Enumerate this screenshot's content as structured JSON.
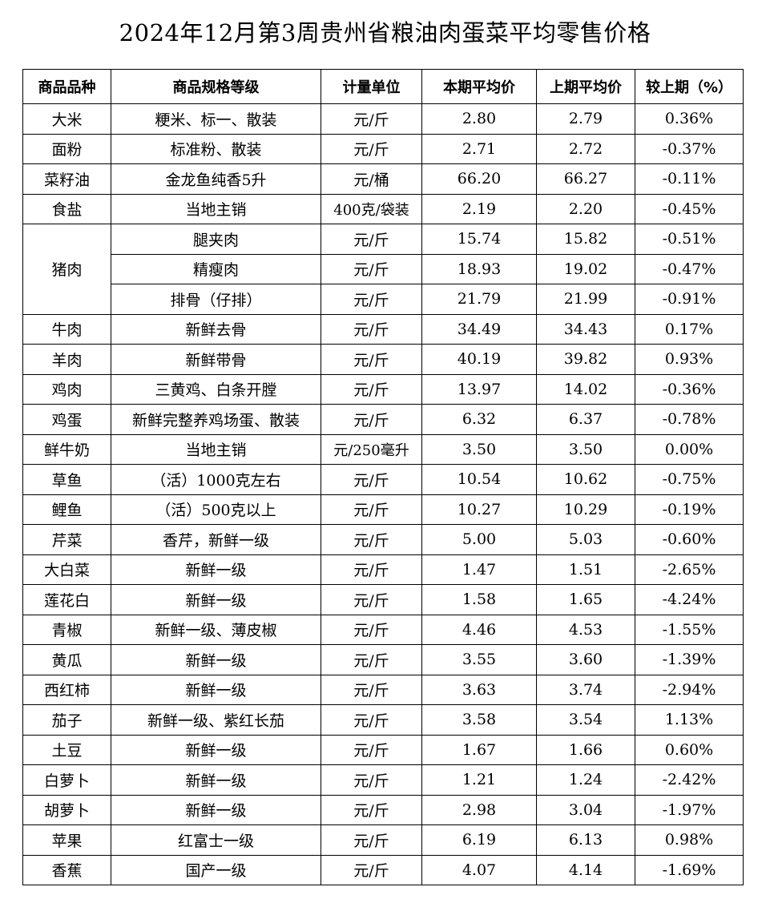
{
  "title": "2024年12月第3周贵州省粮油肉蛋菜平均零售价格",
  "headers": [
    "商品品种",
    "商品规格等级",
    "计量单位",
    "本期平均价",
    "上期平均价",
    "较上期（%）"
  ],
  "rows": [
    {
      "item": "大米",
      "spec": "粳米、标一、散装",
      "unit": "元/斤",
      "cur": "2.80",
      "prev": "2.79",
      "chg": "0.36%"
    },
    {
      "item": "面粉",
      "spec": "标准粉、散装",
      "unit": "元/斤",
      "cur": "2.71",
      "prev": "2.72",
      "chg": "-0.37%"
    },
    {
      "item": "菜籽油",
      "spec": "金龙鱼纯香5升",
      "unit": "元/桶",
      "cur": "66.20",
      "prev": "66.27",
      "chg": "-0.11%"
    },
    {
      "item": "食盐",
      "spec": "当地主销",
      "unit": "400克/袋装",
      "cur": "2.19",
      "prev": "2.20",
      "chg": "-0.45%"
    },
    {
      "item": "猪肉",
      "spec": "腿夹肉",
      "unit": "元/斤",
      "cur": "15.74",
      "prev": "15.82",
      "chg": "-0.51%"
    },
    {
      "item": "",
      "spec": "精瘦肉",
      "unit": "元/斤",
      "cur": "18.93",
      "prev": "19.02",
      "chg": "-0.47%"
    },
    {
      "item": "",
      "spec": "排骨（仔排）",
      "unit": "元/斤",
      "cur": "21.79",
      "prev": "21.99",
      "chg": "-0.91%"
    },
    {
      "item": "牛肉",
      "spec": "新鲜去骨",
      "unit": "元/斤",
      "cur": "34.49",
      "prev": "34.43",
      "chg": "0.17%"
    },
    {
      "item": "羊肉",
      "spec": "新鲜带骨",
      "unit": "元/斤",
      "cur": "40.19",
      "prev": "39.82",
      "chg": "0.93%"
    },
    {
      "item": "鸡肉",
      "spec": "三黄鸡、白条开膛",
      "unit": "元/斤",
      "cur": "13.97",
      "prev": "14.02",
      "chg": "-0.36%"
    },
    {
      "item": "鸡蛋",
      "spec": "新鲜完整养鸡场蛋、散装",
      "unit": "元/斤",
      "cur": "6.32",
      "prev": "6.37",
      "chg": "-0.78%"
    },
    {
      "item": "鲜牛奶",
      "spec": "当地主销",
      "unit": "元/250毫升",
      "cur": "3.50",
      "prev": "3.50",
      "chg": "0.00%"
    },
    {
      "item": "草鱼",
      "spec": "（活）1000克左右",
      "unit": "元/斤",
      "cur": "10.54",
      "prev": "10.62",
      "chg": "-0.75%"
    },
    {
      "item": "鲤鱼",
      "spec": "（活）500克以上",
      "unit": "元/斤",
      "cur": "10.27",
      "prev": "10.29",
      "chg": "-0.19%"
    },
    {
      "item": "芹菜",
      "spec": "香芹，新鲜一级",
      "unit": "元/斤",
      "cur": "5.00",
      "prev": "5.03",
      "chg": "-0.60%"
    },
    {
      "item": "大白菜",
      "spec": "新鲜一级",
      "unit": "元/斤",
      "cur": "1.47",
      "prev": "1.51",
      "chg": "-2.65%"
    },
    {
      "item": "莲花白",
      "spec": "新鲜一级",
      "unit": "元/斤",
      "cur": "1.58",
      "prev": "1.65",
      "chg": "-4.24%"
    },
    {
      "item": "青椒",
      "spec": "新鲜一级、薄皮椒",
      "unit": "元/斤",
      "cur": "4.46",
      "prev": "4.53",
      "chg": "-1.55%"
    },
    {
      "item": "黄瓜",
      "spec": "新鲜一级",
      "unit": "元/斤",
      "cur": "3.55",
      "prev": "3.60",
      "chg": "-1.39%"
    },
    {
      "item": "西红柿",
      "spec": "新鲜一级",
      "unit": "元/斤",
      "cur": "3.63",
      "prev": "3.74",
      "chg": "-2.94%"
    },
    {
      "item": "茄子",
      "spec": "新鲜一级、紫红长茄",
      "unit": "元/斤",
      "cur": "3.58",
      "prev": "3.54",
      "chg": "1.13%"
    },
    {
      "item": "土豆",
      "spec": "新鲜一级",
      "unit": "元/斤",
      "cur": "1.67",
      "prev": "1.66",
      "chg": "0.60%"
    },
    {
      "item": "白萝卜",
      "spec": "新鲜一级",
      "unit": "元/斤",
      "cur": "1.21",
      "prev": "1.24",
      "chg": "-2.42%"
    },
    {
      "item": "胡萝卜",
      "spec": "新鲜一级",
      "unit": "元/斤",
      "cur": "2.98",
      "prev": "3.04",
      "chg": "-1.97%"
    },
    {
      "item": "苹果",
      "spec": "红富士一级",
      "unit": "元/斤",
      "cur": "6.19",
      "prev": "6.13",
      "chg": "0.98%"
    },
    {
      "item": "香蕉",
      "spec": "国产一级",
      "unit": "元/斤",
      "cur": "4.07",
      "prev": "4.14",
      "chg": "-1.69%"
    }
  ]
}
